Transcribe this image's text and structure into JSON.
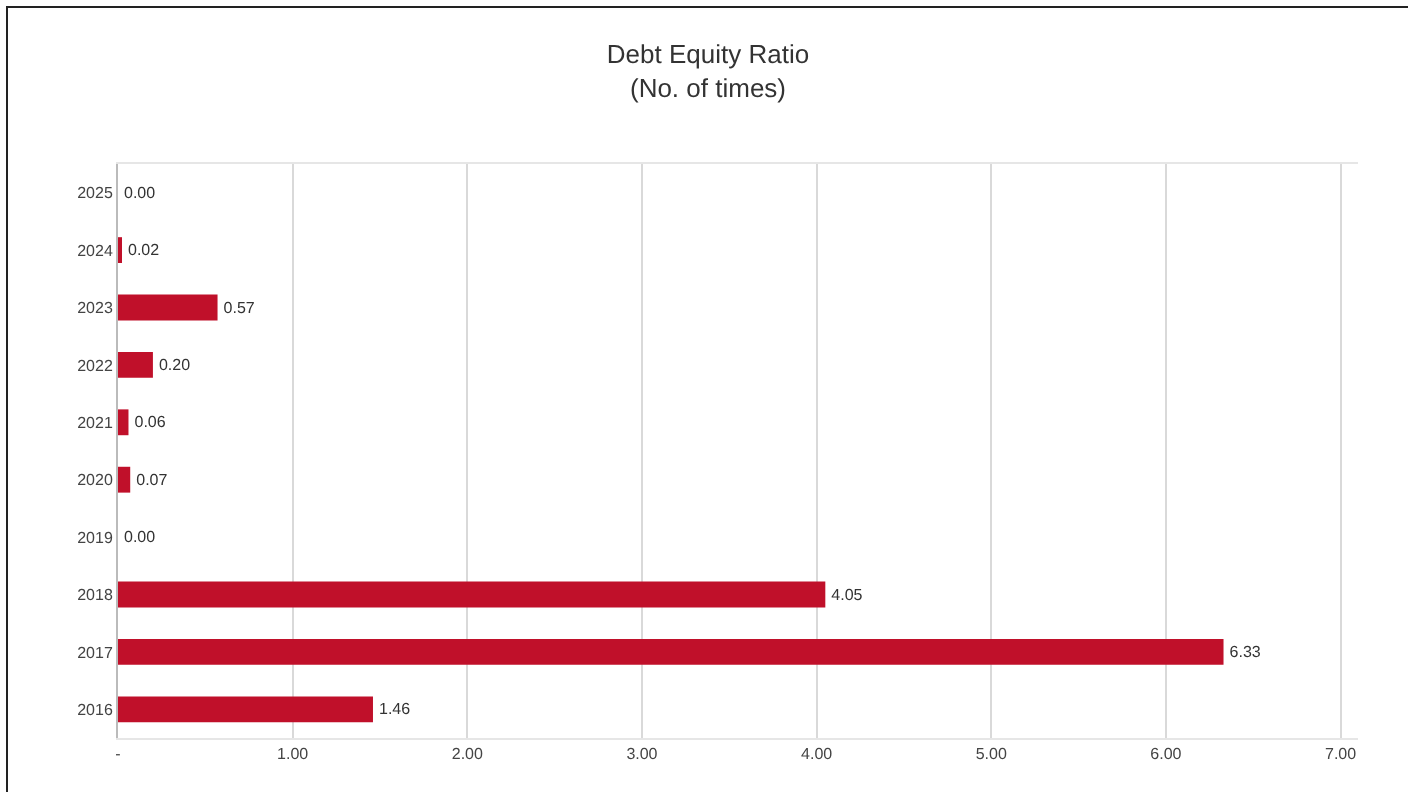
{
  "chart_data": {
    "type": "bar",
    "orientation": "horizontal",
    "title": "Debt Equity Ratio\n(No. of times)",
    "categories": [
      "2025",
      "2024",
      "2023",
      "2022",
      "2021",
      "2020",
      "2019",
      "2018",
      "2017",
      "2016"
    ],
    "values": [
      0,
      0.02,
      0.57,
      0.2,
      0.06,
      0.07,
      0,
      4.05,
      6.33,
      1.46
    ],
    "value_labels": [
      "0.00",
      "0.02",
      "0.57",
      "0.20",
      "0.06",
      "0.07",
      "0.00",
      "4.05",
      "6.33",
      "1.46"
    ],
    "color": "#c0102a",
    "xlim": [
      0,
      7.1
    ],
    "xticks": [
      {
        "value": 0,
        "label": "-"
      },
      {
        "value": 1,
        "label": "1.00"
      },
      {
        "value": 2,
        "label": "2.00"
      },
      {
        "value": 3,
        "label": "3.00"
      },
      {
        "value": 4,
        "label": "4.00"
      },
      {
        "value": 5,
        "label": "5.00"
      },
      {
        "value": 6,
        "label": "6.00"
      },
      {
        "value": 7,
        "label": "7.00"
      }
    ],
    "grid": "x"
  }
}
